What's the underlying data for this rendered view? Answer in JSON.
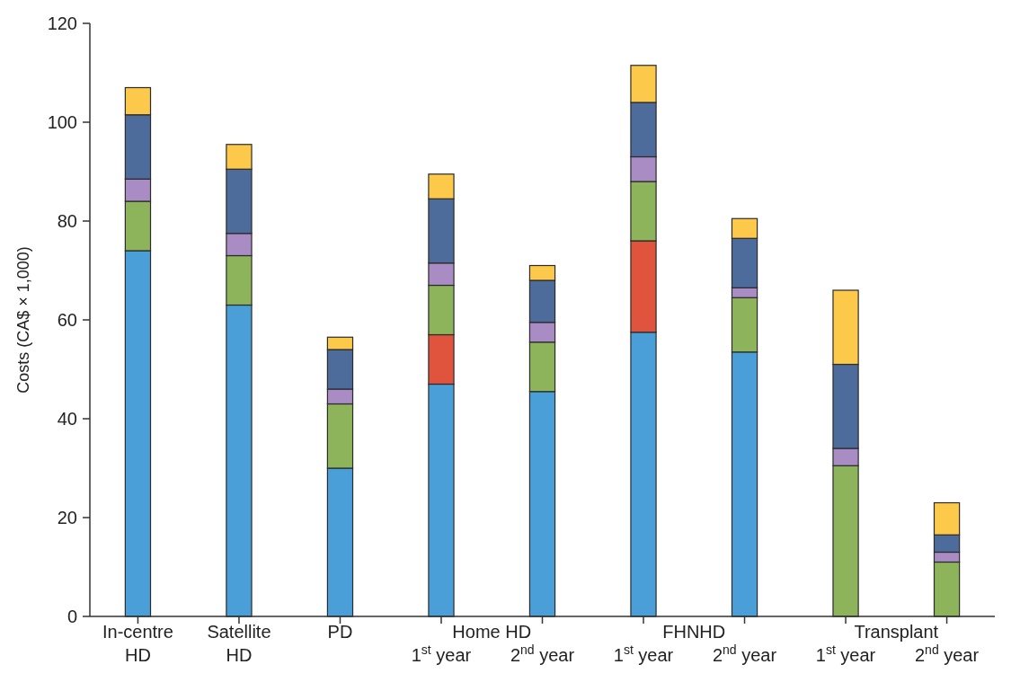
{
  "chart_data": {
    "type": "bar",
    "stacked": true,
    "ylabel": "Costs (CA$ × 1,000)",
    "categories": [
      "In-centre\nHD",
      "Satellite\nHD",
      "PD",
      "Home HD\n1$^{st}$ year",
      "\n2$^{nd}$ year",
      "FHNHD\n1$^{st}$ year",
      "\n2$^{nd}$ year",
      "Transplant\n1$^{st}$ year",
      "\n2$^{nd}$ year"
    ],
    "series": [
      {
        "color": "#4a9fd8",
        "values": [
          74,
          63,
          30,
          47,
          45.5,
          57.5,
          53.5,
          null,
          null
        ]
      },
      {
        "color": "#e0533c",
        "values": [
          null,
          null,
          null,
          10,
          null,
          18.5,
          null,
          null,
          null
        ]
      },
      {
        "color": "#8db45a",
        "values": [
          10,
          10,
          13,
          10,
          10,
          12,
          11,
          30.5,
          11
        ]
      },
      {
        "color": "#a98cc4",
        "values": [
          4.5,
          4.5,
          3,
          4.5,
          4,
          5,
          2,
          3.5,
          2
        ]
      },
      {
        "color": "#4d6c9c",
        "values": [
          13,
          13,
          8,
          13,
          8.5,
          11,
          10,
          17,
          3.5
        ]
      },
      {
        "color": "#fcc94a",
        "values": [
          5.5,
          5,
          2.5,
          5,
          3,
          7.5,
          4,
          15,
          6.5
        ]
      }
    ],
    "ylim": [
      0,
      120
    ],
    "yticks": [
      0,
      20,
      40,
      60,
      80,
      100,
      120
    ],
    "grid": false
  }
}
